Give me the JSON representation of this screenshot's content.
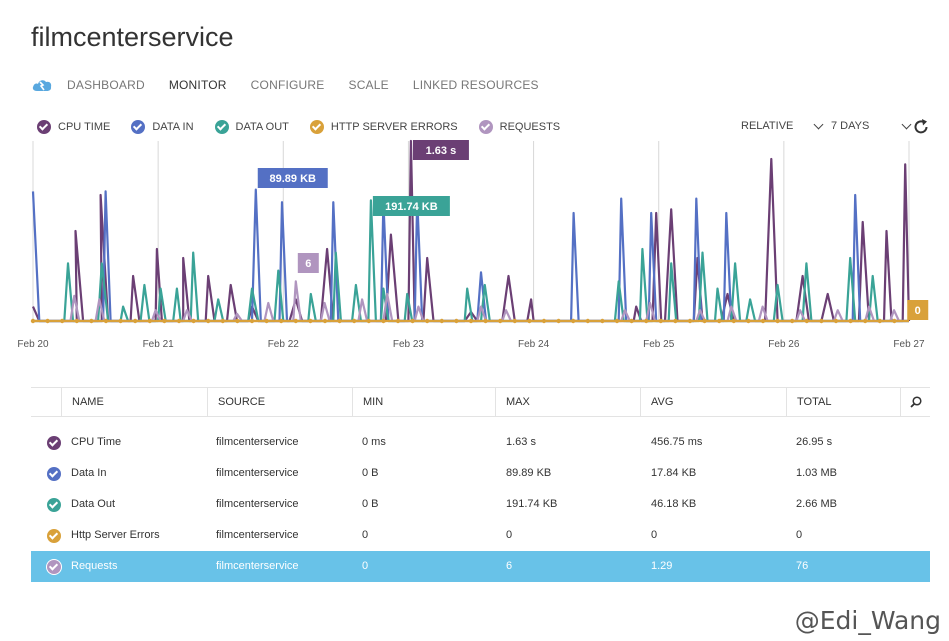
{
  "page_title": "filmcenterservice",
  "nav": {
    "logo_icon": "cloud-service-icon",
    "tabs": [
      "DASHBOARD",
      "MONITOR",
      "CONFIGURE",
      "SCALE",
      "LINKED RESOURCES"
    ],
    "active": "MONITOR"
  },
  "legend": [
    {
      "label": "CPU TIME",
      "color": "#6b3f74"
    },
    {
      "label": "DATA IN",
      "color": "#5470c4"
    },
    {
      "label": "DATA OUT",
      "color": "#3aa397"
    },
    {
      "label": "HTTP SERVER ERRORS",
      "color": "#d9a13a"
    },
    {
      "label": "REQUESTS",
      "color": "#b095bf"
    }
  ],
  "controls": {
    "relative_label": "RELATIVE",
    "range_label": "7 DAYS",
    "refresh_icon": "refresh-icon"
  },
  "chart_data": {
    "type": "line",
    "x_tick_labels": [
      "Feb 20",
      "Feb 21",
      "Feb 22",
      "Feb 23",
      "Feb 24",
      "Feb 25",
      "Feb 26",
      "Feb 27"
    ],
    "xlim": [
      0,
      7
    ],
    "ylim": [
      0,
      100
    ],
    "grid": true,
    "series": [
      {
        "name": "CPU TIME",
        "color": "#6b3f74",
        "points": [
          [
            0,
            8
          ],
          [
            0.05,
            0
          ],
          [
            0.35,
            0
          ],
          [
            0.34,
            50
          ],
          [
            0.4,
            0
          ],
          [
            0.55,
            0
          ],
          [
            0.54,
            70
          ],
          [
            0.6,
            0
          ],
          [
            0.78,
            0
          ],
          [
            0.8,
            25
          ],
          [
            0.85,
            0
          ],
          [
            0.98,
            0
          ],
          [
            0.99,
            40
          ],
          [
            1.03,
            0
          ],
          [
            1.2,
            0
          ],
          [
            1.2,
            35
          ],
          [
            1.25,
            0
          ],
          [
            1.38,
            0
          ],
          [
            1.4,
            25
          ],
          [
            1.45,
            0
          ],
          [
            1.55,
            0
          ],
          [
            1.58,
            20
          ],
          [
            1.63,
            0
          ],
          [
            1.72,
            0
          ],
          [
            1.75,
            8
          ],
          [
            1.8,
            0
          ],
          [
            2.05,
            0
          ],
          [
            2.1,
            12
          ],
          [
            2.15,
            0
          ],
          [
            2.3,
            0
          ],
          [
            2.35,
            40
          ],
          [
            2.4,
            0
          ],
          [
            2.82,
            0
          ],
          [
            2.86,
            48
          ],
          [
            2.92,
            0
          ],
          [
            3.0,
            0
          ],
          [
            3.02,
            100
          ],
          [
            3.05,
            0
          ],
          [
            3.12,
            0
          ],
          [
            3.15,
            35
          ],
          [
            3.2,
            0
          ],
          [
            3.45,
            0
          ],
          [
            3.5,
            5
          ],
          [
            3.55,
            0
          ],
          [
            3.5,
            0
          ],
          [
            3.6,
            0
          ],
          [
            3.65,
            0
          ],
          [
            3.75,
            0
          ],
          [
            3.8,
            25
          ],
          [
            3.85,
            0
          ],
          [
            3.95,
            0
          ],
          [
            3.98,
            12
          ],
          [
            4.0,
            0
          ],
          [
            4.1,
            0
          ],
          [
            4.2,
            0
          ],
          [
            4.8,
            0
          ],
          [
            4.82,
            8
          ],
          [
            4.86,
            0
          ],
          [
            4.95,
            0
          ],
          [
            4.98,
            60
          ],
          [
            5.02,
            0
          ],
          [
            5.05,
            0
          ],
          [
            5.1,
            62
          ],
          [
            5.15,
            0
          ],
          [
            5.28,
            0
          ],
          [
            5.31,
            35
          ],
          [
            5.35,
            0
          ],
          [
            5.5,
            0
          ],
          [
            5.55,
            15
          ],
          [
            5.6,
            0
          ],
          [
            5.85,
            0
          ],
          [
            5.9,
            90
          ],
          [
            5.95,
            0
          ],
          [
            6.1,
            0
          ],
          [
            6.15,
            25
          ],
          [
            6.2,
            0
          ],
          [
            6.3,
            0
          ],
          [
            6.35,
            15
          ],
          [
            6.4,
            0
          ],
          [
            6.6,
            0
          ],
          [
            6.63,
            55
          ],
          [
            6.68,
            0
          ],
          [
            6.8,
            0
          ],
          [
            6.82,
            50
          ],
          [
            6.86,
            0
          ],
          [
            6.95,
            0
          ],
          [
            6.97,
            87
          ],
          [
            7.0,
            0
          ]
        ]
      },
      {
        "name": "DATA IN",
        "color": "#5470c4",
        "points": [
          [
            0,
            72
          ],
          [
            0.05,
            0
          ],
          [
            0.56,
            0
          ],
          [
            0.58,
            72
          ],
          [
            0.62,
            0
          ],
          [
            1.75,
            0
          ],
          [
            1.78,
            73
          ],
          [
            1.82,
            0
          ],
          [
            1.97,
            0
          ],
          [
            1.99,
            66
          ],
          [
            2.03,
            0
          ],
          [
            2.38,
            0
          ],
          [
            2.4,
            66
          ],
          [
            2.44,
            0
          ],
          [
            2.78,
            0
          ],
          [
            2.8,
            66
          ],
          [
            2.84,
            0
          ],
          [
            3.05,
            0
          ],
          [
            3.07,
            68
          ],
          [
            3.11,
            0
          ],
          [
            3.55,
            0
          ],
          [
            3.58,
            27
          ],
          [
            3.62,
            0
          ],
          [
            4.3,
            0
          ],
          [
            4.32,
            60
          ],
          [
            4.36,
            0
          ],
          [
            4.68,
            0
          ],
          [
            4.7,
            68
          ],
          [
            4.74,
            0
          ],
          [
            4.92,
            0
          ],
          [
            4.94,
            60
          ],
          [
            4.98,
            0
          ],
          [
            5.28,
            0
          ],
          [
            5.3,
            68
          ],
          [
            5.34,
            0
          ],
          [
            5.52,
            0
          ],
          [
            5.54,
            60
          ],
          [
            5.58,
            0
          ],
          [
            6.55,
            0
          ],
          [
            6.57,
            70
          ],
          [
            6.61,
            0
          ],
          [
            7.0,
            0
          ]
        ]
      },
      {
        "name": "DATA OUT",
        "color": "#3aa397",
        "points": [
          [
            0,
            0
          ],
          [
            0.25,
            0
          ],
          [
            0.28,
            32
          ],
          [
            0.32,
            0
          ],
          [
            0.52,
            0
          ],
          [
            0.55,
            32
          ],
          [
            0.6,
            0
          ],
          [
            0.7,
            0
          ],
          [
            0.72,
            8
          ],
          [
            0.76,
            0
          ],
          [
            0.86,
            0
          ],
          [
            0.89,
            20
          ],
          [
            0.93,
            0
          ],
          [
            1.0,
            0
          ],
          [
            1.02,
            18
          ],
          [
            1.06,
            0
          ],
          [
            1.12,
            0
          ],
          [
            1.15,
            18
          ],
          [
            1.18,
            0
          ],
          [
            1.26,
            0
          ],
          [
            1.28,
            38
          ],
          [
            1.32,
            0
          ],
          [
            1.45,
            0
          ],
          [
            1.48,
            12
          ],
          [
            1.52,
            0
          ],
          [
            1.72,
            0
          ],
          [
            1.75,
            18
          ],
          [
            1.8,
            0
          ],
          [
            1.93,
            0
          ],
          [
            1.96,
            28
          ],
          [
            2.0,
            0
          ],
          [
            2.2,
            0
          ],
          [
            2.22,
            15
          ],
          [
            2.26,
            0
          ],
          [
            2.4,
            0
          ],
          [
            2.42,
            38
          ],
          [
            2.46,
            0
          ],
          [
            2.55,
            0
          ],
          [
            2.58,
            20
          ],
          [
            2.62,
            0
          ],
          [
            2.68,
            0
          ],
          [
            2.7,
            67
          ],
          [
            2.74,
            0
          ],
          [
            2.78,
            0
          ],
          [
            2.8,
            18
          ],
          [
            2.84,
            0
          ],
          [
            2.97,
            0
          ],
          [
            2.99,
            15
          ],
          [
            3.03,
            0
          ],
          [
            3.45,
            0
          ],
          [
            3.47,
            18
          ],
          [
            3.51,
            0
          ],
          [
            3.58,
            0
          ],
          [
            3.61,
            20
          ],
          [
            3.65,
            0
          ],
          [
            4.65,
            0
          ],
          [
            4.68,
            22
          ],
          [
            4.72,
            0
          ],
          [
            4.85,
            0
          ],
          [
            4.87,
            40
          ],
          [
            4.91,
            0
          ],
          [
            5.08,
            0
          ],
          [
            5.1,
            32
          ],
          [
            5.14,
            0
          ],
          [
            5.32,
            0
          ],
          [
            5.35,
            38
          ],
          [
            5.39,
            0
          ],
          [
            5.45,
            0
          ],
          [
            5.47,
            18
          ],
          [
            5.51,
            0
          ],
          [
            5.58,
            0
          ],
          [
            5.61,
            32
          ],
          [
            5.65,
            0
          ],
          [
            5.7,
            0
          ],
          [
            5.73,
            12
          ],
          [
            5.77,
            0
          ],
          [
            5.92,
            0
          ],
          [
            5.95,
            20
          ],
          [
            5.99,
            0
          ],
          [
            6.15,
            0
          ],
          [
            6.18,
            32
          ],
          [
            6.22,
            0
          ],
          [
            6.5,
            0
          ],
          [
            6.53,
            35
          ],
          [
            6.57,
            0
          ],
          [
            6.68,
            0
          ],
          [
            6.71,
            25
          ],
          [
            6.75,
            0
          ],
          [
            7.0,
            0
          ]
        ]
      },
      {
        "name": "REQUESTS",
        "color": "#b095bf",
        "points": [
          [
            0,
            0
          ],
          [
            0.3,
            0
          ],
          [
            0.33,
            14
          ],
          [
            0.37,
            0
          ],
          [
            0.5,
            0
          ],
          [
            0.53,
            12
          ],
          [
            0.57,
            0
          ],
          [
            0.95,
            0
          ],
          [
            0.98,
            6
          ],
          [
            1.02,
            0
          ],
          [
            1.2,
            0
          ],
          [
            1.23,
            6
          ],
          [
            1.27,
            0
          ],
          [
            1.6,
            0
          ],
          [
            1.63,
            4
          ],
          [
            1.67,
            0
          ],
          [
            1.85,
            0
          ],
          [
            1.88,
            10
          ],
          [
            1.92,
            0
          ],
          [
            2.08,
            0
          ],
          [
            2.1,
            22
          ],
          [
            2.14,
            0
          ],
          [
            2.3,
            0
          ],
          [
            2.33,
            10
          ],
          [
            2.37,
            0
          ],
          [
            2.6,
            0
          ],
          [
            2.63,
            12
          ],
          [
            2.67,
            0
          ],
          [
            2.8,
            0
          ],
          [
            2.83,
            15
          ],
          [
            2.87,
            0
          ],
          [
            3.05,
            0
          ],
          [
            3.08,
            8
          ],
          [
            3.12,
            0
          ],
          [
            3.55,
            0
          ],
          [
            3.58,
            8
          ],
          [
            3.62,
            0
          ],
          [
            3.75,
            0
          ],
          [
            3.78,
            6
          ],
          [
            3.82,
            0
          ],
          [
            4.7,
            0
          ],
          [
            4.73,
            6
          ],
          [
            4.77,
            0
          ],
          [
            4.9,
            0
          ],
          [
            4.93,
            10
          ],
          [
            4.97,
            0
          ],
          [
            5.3,
            0
          ],
          [
            5.33,
            6
          ],
          [
            5.37,
            0
          ],
          [
            5.55,
            0
          ],
          [
            5.58,
            8
          ],
          [
            5.62,
            0
          ],
          [
            5.8,
            0
          ],
          [
            5.83,
            8
          ],
          [
            5.87,
            0
          ],
          [
            6.1,
            0
          ],
          [
            6.13,
            6
          ],
          [
            6.17,
            0
          ],
          [
            6.4,
            0
          ],
          [
            6.43,
            6
          ],
          [
            6.47,
            0
          ],
          [
            6.65,
            0
          ],
          [
            6.68,
            8
          ],
          [
            6.72,
            0
          ],
          [
            6.85,
            0
          ],
          [
            6.88,
            6
          ],
          [
            6.92,
            0
          ],
          [
            7.0,
            0
          ]
        ]
      },
      {
        "name": "HTTP SERVER ERRORS",
        "color": "#d9a13a",
        "points": [
          [
            0,
            0
          ],
          [
            7.0,
            0
          ]
        ]
      }
    ],
    "annotations": [
      {
        "text": "1.63 s",
        "color": "#6b3f74",
        "x": 3.02
      },
      {
        "text": "89.89 KB",
        "color": "#5470c4",
        "x": 1.78
      },
      {
        "text": "191.74 KB",
        "color": "#3aa397",
        "x": 2.7
      },
      {
        "text": "6",
        "color": "#b095bf",
        "x": 2.1
      },
      {
        "text": "0",
        "color": "#d9a13a",
        "x": 6.97
      }
    ]
  },
  "table": {
    "columns": [
      "NAME",
      "SOURCE",
      "MIN",
      "MAX",
      "AVG",
      "TOTAL"
    ],
    "search_icon": "search-icon",
    "rows": [
      {
        "name": "CPU Time",
        "source": "filmcenterservice",
        "min": "0 ms",
        "max": "1.63 s",
        "avg": "456.75 ms",
        "total": "26.95 s",
        "color": "#6b3f74",
        "selected": false
      },
      {
        "name": "Data In",
        "source": "filmcenterservice",
        "min": "0 B",
        "max": "89.89 KB",
        "avg": "17.84 KB",
        "total": "1.03 MB",
        "color": "#5470c4",
        "selected": false
      },
      {
        "name": "Data Out",
        "source": "filmcenterservice",
        "min": "0 B",
        "max": "191.74 KB",
        "avg": "46.18 KB",
        "total": "2.66 MB",
        "color": "#3aa397",
        "selected": false
      },
      {
        "name": "Http Server Errors",
        "source": "filmcenterservice",
        "min": "0",
        "max": "0",
        "avg": "0",
        "total": "0",
        "color": "#d9a13a",
        "selected": false
      },
      {
        "name": "Requests",
        "source": "filmcenterservice",
        "min": "0",
        "max": "6",
        "avg": "1.29",
        "total": "76",
        "color": "#b095bf",
        "selected": true
      }
    ]
  },
  "watermark": "@Edi_Wang"
}
